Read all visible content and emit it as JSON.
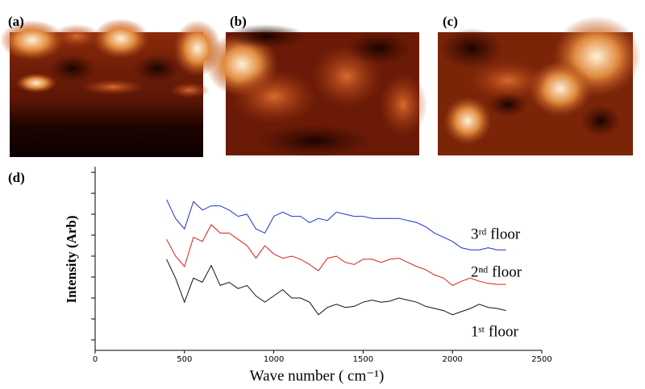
{
  "panels": {
    "labels": [
      "(a)",
      "(b)",
      "(c)"
    ]
  },
  "chart_data": {
    "type": "line",
    "panel_label": "(d)",
    "xlabel": "Wave number ( cm⁻¹)",
    "ylabel": "Intensity (Arb)",
    "x": [
      400,
      450,
      500,
      550,
      600,
      650,
      700,
      750,
      800,
      850,
      900,
      950,
      1000,
      1050,
      1100,
      1150,
      1200,
      1250,
      1300,
      1350,
      1400,
      1450,
      1500,
      1550,
      1600,
      1650,
      1700,
      1750,
      1800,
      1850,
      1900,
      1950,
      2000,
      2050,
      2100,
      2150,
      2200,
      2250,
      2300
    ],
    "series": [
      {
        "name": "3ʳᵈ floor",
        "color": "#1f2fd0",
        "values": [
          7.2,
          6.3,
          5.8,
          7.1,
          6.7,
          6.9,
          6.9,
          6.7,
          6.4,
          6.5,
          5.8,
          5.6,
          6.4,
          6.6,
          6.4,
          6.4,
          6.1,
          6.3,
          6.2,
          6.6,
          6.5,
          6.4,
          6.4,
          6.3,
          6.3,
          6.3,
          6.3,
          6.2,
          6.1,
          5.9,
          5.6,
          5.4,
          5.2,
          4.9,
          4.8,
          4.8,
          4.9,
          4.8,
          4.8
        ]
      },
      {
        "name": "2ⁿᵈ floor",
        "color": "#e01c1c",
        "values": [
          5.3,
          4.5,
          4.0,
          5.4,
          5.2,
          6.0,
          5.6,
          5.6,
          5.3,
          5.0,
          4.4,
          5.0,
          4.6,
          4.4,
          4.5,
          4.35,
          4.1,
          3.8,
          4.4,
          4.5,
          4.2,
          4.1,
          4.35,
          4.35,
          4.2,
          4.35,
          4.4,
          4.2,
          4.0,
          3.85,
          3.6,
          3.45,
          3.1,
          3.3,
          3.45,
          3.3,
          3.2,
          3.15,
          3.15
        ]
      },
      {
        "name": "1ˢᵗ floor",
        "color": "#111111",
        "values": [
          4.35,
          3.45,
          2.3,
          3.45,
          3.25,
          4.05,
          3.1,
          3.25,
          2.95,
          3.1,
          2.6,
          2.3,
          2.6,
          2.9,
          2.5,
          2.5,
          2.3,
          1.7,
          2.05,
          2.2,
          2.05,
          2.1,
          2.3,
          2.4,
          2.3,
          2.35,
          2.5,
          2.4,
          2.3,
          2.1,
          2.0,
          1.9,
          1.7,
          1.85,
          2.0,
          2.2,
          2.05,
          2.0,
          1.9
        ]
      }
    ],
    "xlim": [
      0,
      2500
    ],
    "xticks": [
      0,
      500,
      1000,
      1500,
      2000,
      2500
    ],
    "ylim": [
      0,
      9
    ],
    "yticks": [
      0.5,
      1.5,
      2.5,
      3.5,
      4.5,
      5.5,
      6.5,
      7.5,
      8.5
    ]
  }
}
